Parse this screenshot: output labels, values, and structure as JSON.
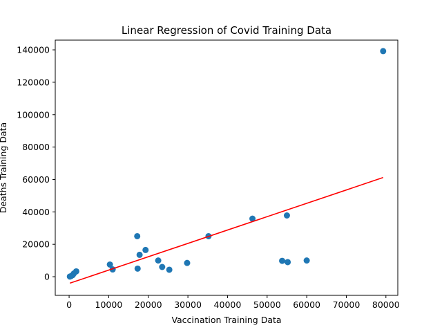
{
  "chart_data": {
    "type": "scatter",
    "title": "Linear Regression of Covid Training Data",
    "xlabel": "Vaccination Training Data",
    "ylabel": "Deaths Training Data",
    "xlim": [
      -3500,
      83000
    ],
    "ylim": [
      -11500,
      146000
    ],
    "xticks": [
      0,
      10000,
      20000,
      30000,
      40000,
      50000,
      60000,
      70000,
      80000
    ],
    "yticks": [
      0,
      20000,
      40000,
      60000,
      80000,
      100000,
      120000,
      140000
    ],
    "grid": false,
    "series": [
      {
        "kind": "scatter",
        "color": "#1f77b4",
        "points": [
          [
            79300,
            139200
          ],
          [
            55000,
            37800
          ],
          [
            46300,
            35800
          ],
          [
            35200,
            25000
          ],
          [
            60000,
            10000
          ],
          [
            53800,
            9800
          ],
          [
            55200,
            9000
          ],
          [
            29800,
            8500
          ],
          [
            25300,
            4300
          ],
          [
            23500,
            6000
          ],
          [
            22500,
            10000
          ],
          [
            19300,
            16500
          ],
          [
            17800,
            13500
          ],
          [
            17200,
            25000
          ],
          [
            17300,
            5000
          ],
          [
            11000,
            4500
          ],
          [
            10300,
            7500
          ],
          [
            1800,
            3300
          ],
          [
            1200,
            2000
          ],
          [
            900,
            1000
          ],
          [
            500,
            400
          ],
          [
            200,
            100
          ]
        ]
      },
      {
        "kind": "line",
        "color": "#ff0000",
        "points": [
          [
            200,
            -4000
          ],
          [
            79300,
            61200
          ]
        ]
      }
    ]
  }
}
